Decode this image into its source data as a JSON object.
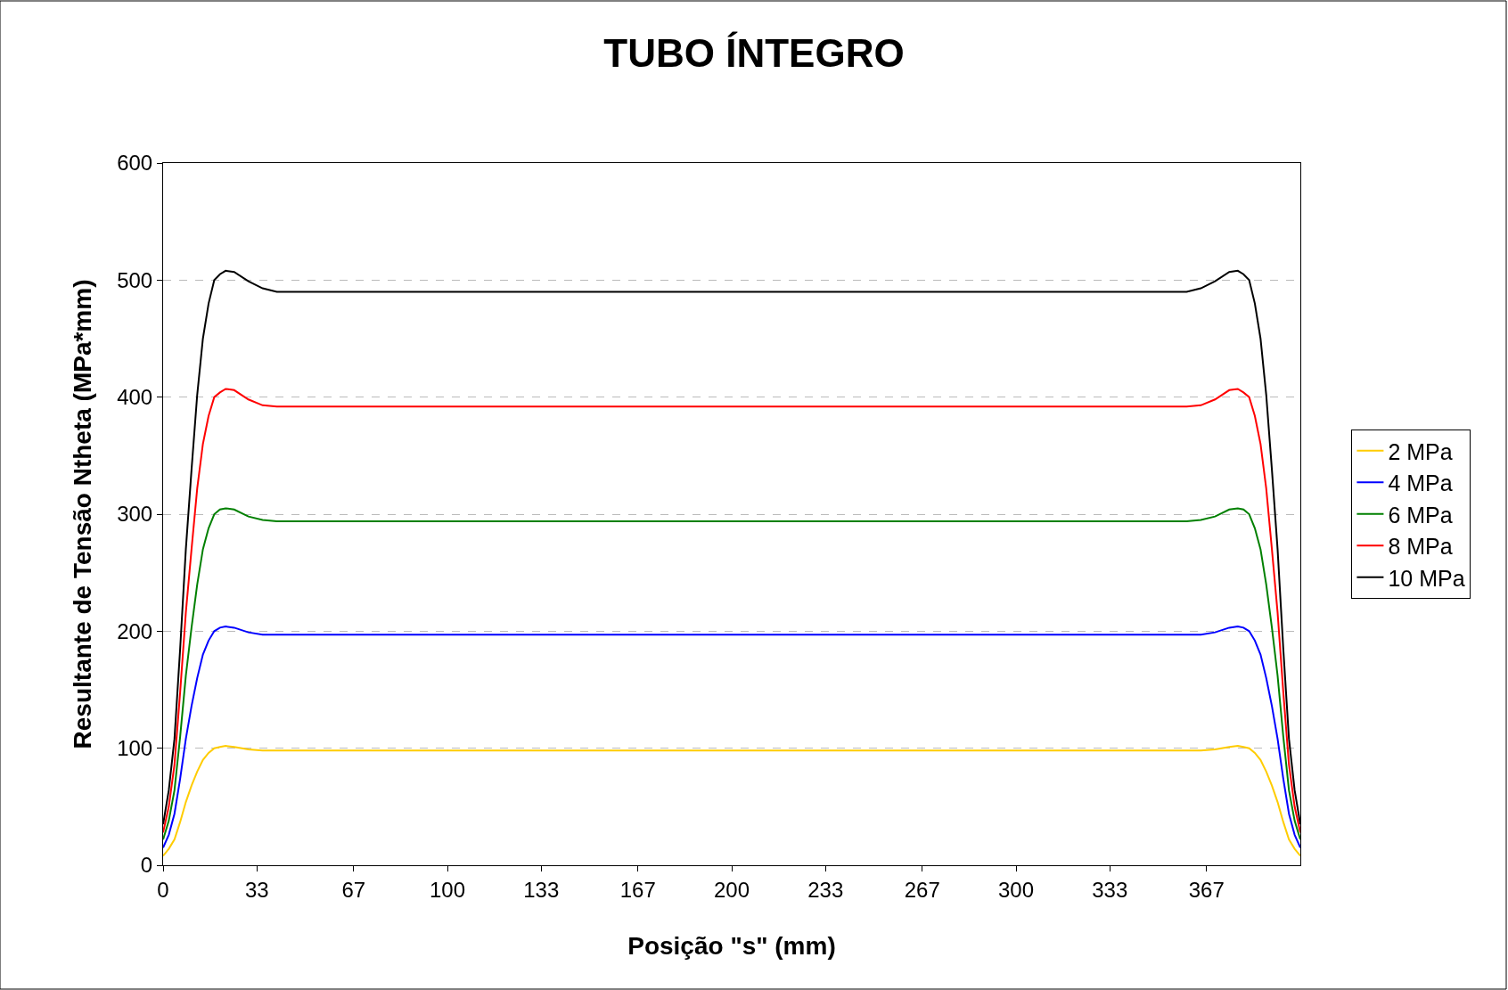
{
  "chart_data": {
    "type": "line",
    "title": "TUBO ÍNTEGRO",
    "xlabel": "Posição \"s\" (mm)",
    "ylabel": "Resultante de Tensão Ntheta (MPa*mm)",
    "x": [
      0,
      2,
      4,
      6,
      8,
      10,
      12,
      14,
      16,
      18,
      20,
      22,
      25,
      30,
      35,
      40,
      50,
      200,
      350,
      360,
      365,
      370,
      375,
      378,
      380,
      382,
      384,
      386,
      388,
      390,
      392,
      394,
      396,
      398,
      400
    ],
    "series": [
      {
        "name": "2 MPa",
        "color": "#ffcc00",
        "values": [
          8,
          14,
          22,
          37,
          54,
          68,
          80,
          90,
          96,
          100,
          101,
          102,
          101,
          99,
          98,
          98,
          98,
          98,
          98,
          98,
          98,
          99,
          101,
          102,
          101,
          100,
          96,
          90,
          80,
          68,
          54,
          37,
          22,
          14,
          8
        ]
      },
      {
        "name": "4 MPa",
        "color": "#0000ff",
        "values": [
          15,
          26,
          44,
          74,
          108,
          136,
          160,
          180,
          192,
          200,
          203,
          204,
          203,
          199,
          197,
          197,
          197,
          197,
          197,
          197,
          197,
          199,
          203,
          204,
          203,
          200,
          192,
          180,
          160,
          136,
          108,
          74,
          44,
          26,
          15
        ]
      },
      {
        "name": "6 MPa",
        "color": "#008000",
        "values": [
          22,
          38,
          64,
          110,
          162,
          203,
          240,
          270,
          288,
          300,
          304,
          305,
          304,
          298,
          295,
          294,
          294,
          294,
          294,
          294,
          295,
          298,
          304,
          305,
          304,
          300,
          288,
          270,
          240,
          203,
          162,
          110,
          64,
          38,
          22
        ]
      },
      {
        "name": "8 MPa",
        "color": "#ff0000",
        "values": [
          28,
          50,
          86,
          148,
          216,
          270,
          322,
          360,
          384,
          400,
          404,
          407,
          406,
          398,
          393,
          392,
          392,
          392,
          392,
          392,
          393,
          398,
          406,
          407,
          404,
          400,
          384,
          360,
          322,
          270,
          216,
          148,
          86,
          50,
          28
        ]
      },
      {
        "name": "10 MPa",
        "color": "#000000",
        "values": [
          35,
          64,
          108,
          185,
          270,
          338,
          402,
          450,
          480,
          500,
          505,
          508,
          507,
          499,
          493,
          490,
          490,
          490,
          490,
          490,
          493,
          499,
          507,
          508,
          505,
          500,
          480,
          450,
          402,
          338,
          270,
          185,
          108,
          64,
          35
        ]
      }
    ],
    "xlim": [
      0,
      400
    ],
    "xticks": [
      0,
      33,
      67,
      100,
      133,
      167,
      200,
      233,
      267,
      300,
      333,
      367
    ],
    "ylim": [
      0,
      600
    ],
    "yticks": [
      0,
      100,
      200,
      300,
      400,
      500,
      600
    ],
    "grid": "y",
    "legend": "right",
    "marker": "none",
    "line_style": "solid"
  }
}
